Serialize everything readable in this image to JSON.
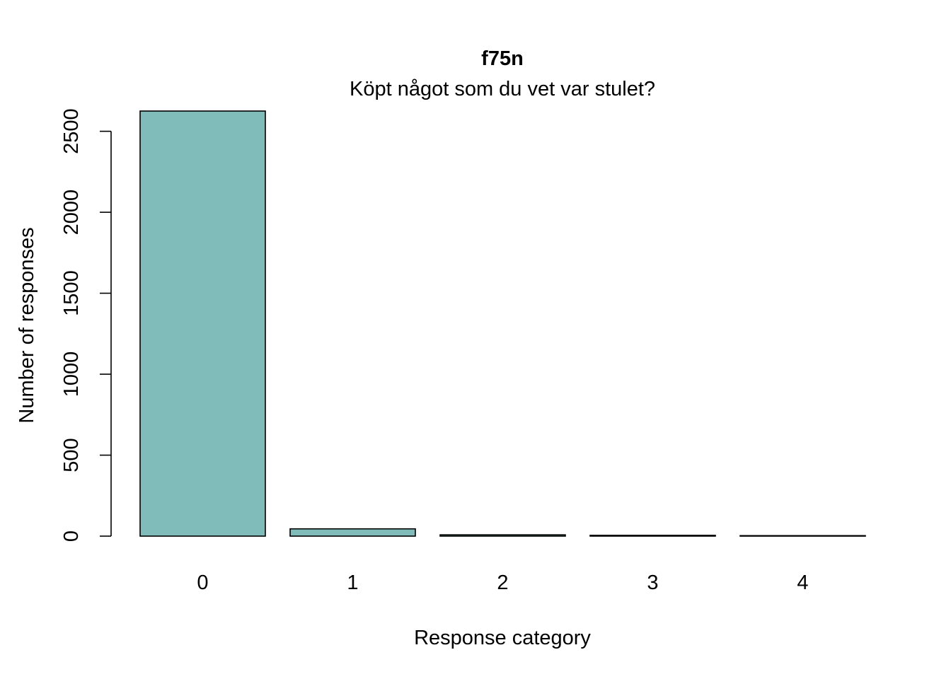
{
  "chart_data": {
    "type": "bar",
    "title": "f75n",
    "subtitle": "Köpt något som du vet var stulet?",
    "xlabel": "Response category",
    "ylabel": "Number of responses",
    "categories": [
      "0",
      "1",
      "2",
      "3",
      "4"
    ],
    "values": [
      2625,
      45,
      8,
      5,
      3
    ],
    "ylim": [
      0,
      2625
    ],
    "yticks": [
      0,
      500,
      1000,
      1500,
      2000,
      2500
    ],
    "bar_color": "#80BDBA",
    "grid": false,
    "legend": "none"
  }
}
